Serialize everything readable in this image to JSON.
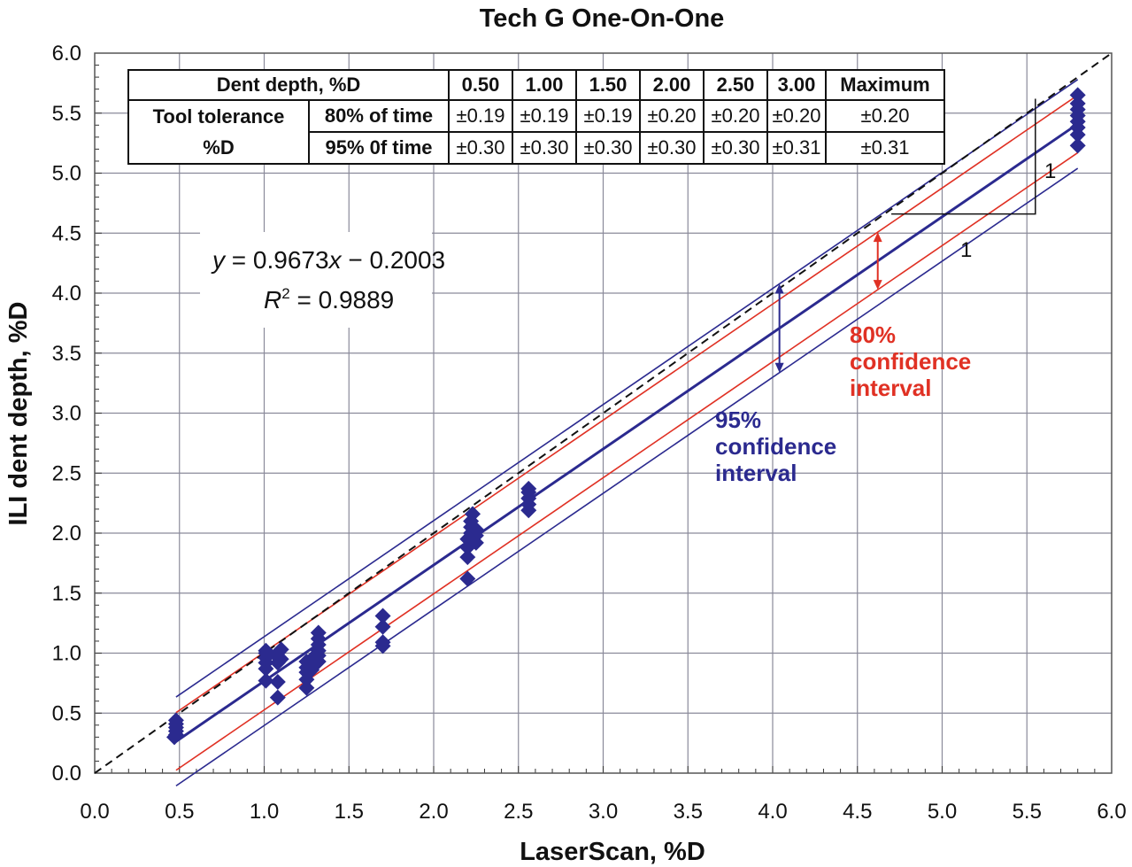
{
  "chart_data": {
    "type": "scatter",
    "title": "Tech G One-On-One",
    "xlabel": "LaserScan, %D",
    "ylabel": "ILI dent depth, %D",
    "xlim": [
      0.0,
      6.0
    ],
    "ylim": [
      0.0,
      6.0
    ],
    "x_ticks": [
      "0.0",
      "0.5",
      "1.0",
      "1.5",
      "2.0",
      "2.5",
      "3.0",
      "3.5",
      "4.0",
      "4.5",
      "5.0",
      "5.5",
      "6.0"
    ],
    "y_ticks": [
      "0.0",
      "0.5",
      "1.0",
      "1.5",
      "2.0",
      "2.5",
      "3.0",
      "3.5",
      "4.0",
      "4.5",
      "5.0",
      "5.5",
      "6.0"
    ],
    "grid": true,
    "colors": {
      "points": "#2b2a8f",
      "ci95": "#2b2a8f",
      "ci80": "#e03124",
      "identity": "#111111"
    },
    "fit": {
      "slope": 0.9673,
      "intercept": -0.2003
    },
    "equation": {
      "prefix": "y",
      "rhs": " = 0.9673",
      "x": "x",
      "tail": " − 0.2003"
    },
    "r_squared": {
      "label": "R",
      "sup": "2",
      "rhs": " = 0.9889"
    },
    "ci80_offset": 0.24,
    "ci95_offset": 0.37,
    "ci80_label": [
      "80%",
      "confidence",
      "interval"
    ],
    "ci95_label": [
      "95%",
      "confidence",
      "interval"
    ],
    "slope_marker": "1",
    "slope_marker_2": "1",
    "points": [
      {
        "x": 0.48,
        "y": 0.32
      },
      {
        "x": 0.48,
        "y": 0.35
      },
      {
        "x": 0.48,
        "y": 0.38
      },
      {
        "x": 0.48,
        "y": 0.41
      },
      {
        "x": 0.48,
        "y": 0.44
      },
      {
        "x": 0.47,
        "y": 0.3
      },
      {
        "x": 1.01,
        "y": 0.77
      },
      {
        "x": 1.01,
        "y": 0.87
      },
      {
        "x": 1.01,
        "y": 0.92
      },
      {
        "x": 1.01,
        "y": 0.96
      },
      {
        "x": 1.01,
        "y": 1.0
      },
      {
        "x": 1.01,
        "y": 1.02
      },
      {
        "x": 1.08,
        "y": 0.63
      },
      {
        "x": 1.08,
        "y": 0.76
      },
      {
        "x": 1.08,
        "y": 0.92
      },
      {
        "x": 1.08,
        "y": 0.97
      },
      {
        "x": 1.08,
        "y": 1.0
      },
      {
        "x": 1.1,
        "y": 0.95
      },
      {
        "x": 1.1,
        "y": 1.03
      },
      {
        "x": 1.25,
        "y": 0.71
      },
      {
        "x": 1.25,
        "y": 0.78
      },
      {
        "x": 1.25,
        "y": 0.84
      },
      {
        "x": 1.25,
        "y": 0.88
      },
      {
        "x": 1.25,
        "y": 0.93
      },
      {
        "x": 1.28,
        "y": 0.86
      },
      {
        "x": 1.28,
        "y": 0.95
      },
      {
        "x": 1.32,
        "y": 0.93
      },
      {
        "x": 1.32,
        "y": 0.98
      },
      {
        "x": 1.32,
        "y": 1.02
      },
      {
        "x": 1.32,
        "y": 1.07
      },
      {
        "x": 1.32,
        "y": 1.12
      },
      {
        "x": 1.32,
        "y": 1.17
      },
      {
        "x": 1.7,
        "y": 1.06
      },
      {
        "x": 1.7,
        "y": 1.09
      },
      {
        "x": 1.7,
        "y": 1.22
      },
      {
        "x": 1.7,
        "y": 1.31
      },
      {
        "x": 2.2,
        "y": 1.62
      },
      {
        "x": 2.2,
        "y": 1.8
      },
      {
        "x": 2.2,
        "y": 1.88
      },
      {
        "x": 2.2,
        "y": 1.95
      },
      {
        "x": 2.22,
        "y": 2.0
      },
      {
        "x": 2.22,
        "y": 2.05
      },
      {
        "x": 2.22,
        "y": 2.1
      },
      {
        "x": 2.23,
        "y": 2.16
      },
      {
        "x": 2.25,
        "y": 1.92
      },
      {
        "x": 2.25,
        "y": 1.98
      },
      {
        "x": 2.25,
        "y": 2.03
      },
      {
        "x": 2.56,
        "y": 2.19
      },
      {
        "x": 2.56,
        "y": 2.24
      },
      {
        "x": 2.56,
        "y": 2.29
      },
      {
        "x": 2.56,
        "y": 2.34
      },
      {
        "x": 2.56,
        "y": 2.37
      },
      {
        "x": 5.8,
        "y": 5.23
      },
      {
        "x": 5.8,
        "y": 5.32
      },
      {
        "x": 5.8,
        "y": 5.38
      },
      {
        "x": 5.8,
        "y": 5.43
      },
      {
        "x": 5.8,
        "y": 5.48
      },
      {
        "x": 5.8,
        "y": 5.53
      },
      {
        "x": 5.8,
        "y": 5.58
      },
      {
        "x": 5.8,
        "y": 5.65
      }
    ]
  },
  "tolerance_table": {
    "header_label": "Dent depth, %D",
    "columns": [
      "0.50",
      "1.00",
      "1.50",
      "2.00",
      "2.50",
      "3.00",
      "Maximum"
    ],
    "group_label_line1": "Tool tolerance",
    "group_label_line2": "%D",
    "rows": [
      {
        "label": "80% of time",
        "values": [
          "±0.19",
          "±0.19",
          "±0.19",
          "±0.20",
          "±0.20",
          "±0.20",
          "±0.20"
        ]
      },
      {
        "label": "95% 0f time",
        "values": [
          "±0.30",
          "±0.30",
          "±0.30",
          "±0.30",
          "±0.30",
          "±0.31",
          "±0.31"
        ]
      }
    ]
  }
}
